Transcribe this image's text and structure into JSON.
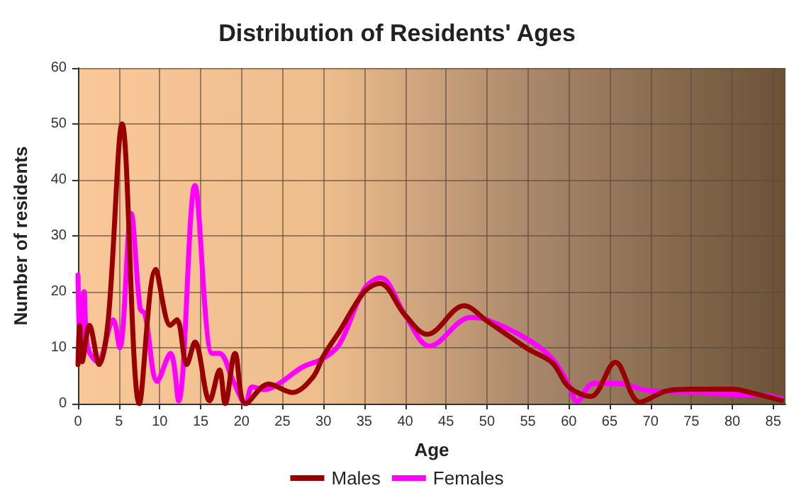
{
  "chart_data": {
    "type": "line",
    "title": "Distribution of Residents' Ages",
    "xlabel": "Age",
    "ylabel": "Number of residents",
    "xlim": [
      0,
      86.5
    ],
    "xticks": [
      0,
      5,
      10,
      15,
      20,
      25,
      30,
      35,
      40,
      45,
      50,
      55,
      60,
      65,
      70,
      75,
      80,
      85
    ],
    "ylim": [
      0,
      60
    ],
    "yticks": [
      0,
      10,
      20,
      30,
      40,
      50,
      60
    ],
    "grid": true,
    "legend": "bottom",
    "marker": "none",
    "line_style": "solid",
    "series": [
      {
        "name": "Males",
        "color": "#990000",
        "x": [
          0,
          0.2,
          0.5,
          1.4,
          2.6,
          3.7,
          5.4,
          7.5,
          9.5,
          11.3,
          12.1,
          13.3,
          14.3,
          16.1,
          17.3,
          18,
          19.2,
          20.5,
          23.3,
          26.2,
          28.7,
          30,
          32,
          35,
          36.9,
          40,
          42.7,
          47.2,
          50,
          55,
          58,
          60,
          62.7,
          65.7,
          68.7,
          72,
          75,
          80,
          83,
          86
        ],
        "values": [
          7,
          14,
          7.5,
          14,
          7,
          15,
          50,
          0,
          24,
          14,
          15,
          7,
          11,
          0.5,
          6,
          0,
          9,
          0,
          3.5,
          2,
          4.7,
          8.5,
          13,
          20,
          21.5,
          15.8,
          12.4,
          17.5,
          14.8,
          9.8,
          7.3,
          3,
          1.3,
          7.4,
          0.3,
          2.3,
          2.6,
          2.6,
          1.7,
          0.6
        ]
      },
      {
        "name": "Females",
        "color": "#ff00ff",
        "x": [
          0,
          0.3,
          0.75,
          1.2,
          2.4,
          4.3,
          5.1,
          6.5,
          7.6,
          8.2,
          9.7,
          11.3,
          12.3,
          14.3,
          16.4,
          17.3,
          19,
          20.5,
          21.3,
          22.8,
          24.5,
          27.4,
          30,
          32,
          35,
          37,
          40,
          43,
          48,
          50,
          55,
          58,
          60,
          61,
          63,
          66,
          70,
          75,
          80,
          84,
          86
        ],
        "values": [
          23,
          8,
          20,
          10,
          7.5,
          15,
          10,
          34,
          17,
          16,
          4,
          9,
          0.5,
          39,
          9,
          9,
          4,
          0,
          3,
          2.5,
          3.5,
          6.5,
          8.1,
          10.7,
          20.5,
          22.5,
          15.8,
          10.3,
          15.4,
          15,
          11.5,
          8,
          3.4,
          0.4,
          3.6,
          3.6,
          2.3,
          2.1,
          1.6,
          1.5,
          0.9
        ]
      }
    ]
  }
}
